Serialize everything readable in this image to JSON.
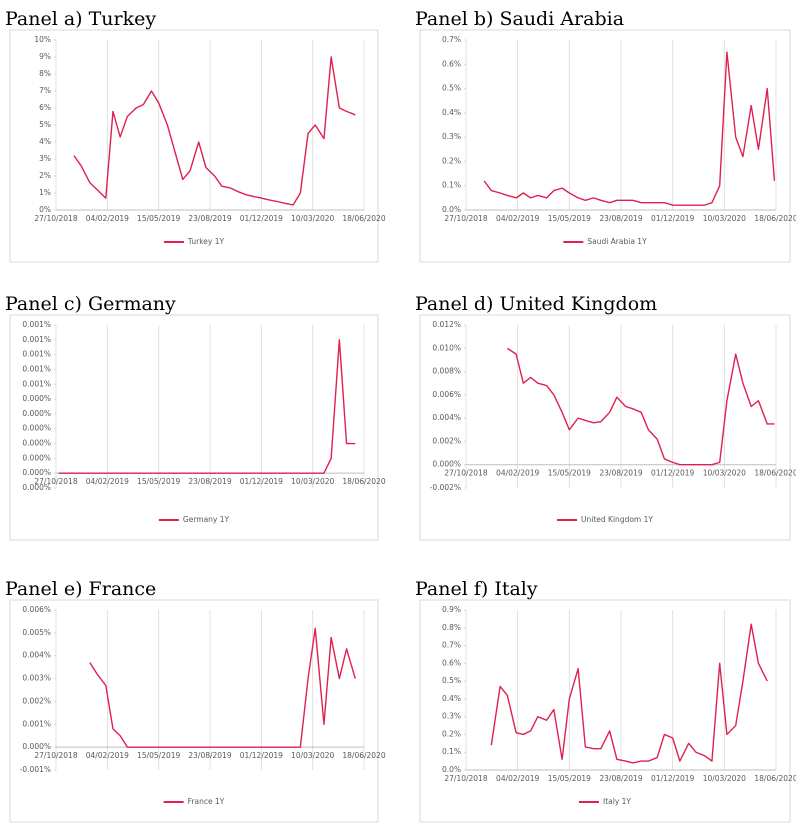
{
  "chart_data": [
    {
      "type": "line",
      "title": "Panel a) Turkey",
      "grid": "vertical",
      "legend": "bottom",
      "xlim": [
        "2018-10-27",
        "2020-06-18"
      ],
      "xticks": [
        {
          "value": "2018-10-27",
          "label": "27/10/2018"
        },
        {
          "value": "2019-02-04",
          "label": "04/02/2019"
        },
        {
          "value": "2019-05-15",
          "label": "15/05/2019"
        },
        {
          "value": "2019-08-23",
          "label": "23/08/2019"
        },
        {
          "value": "2019-12-01",
          "label": "01/12/2019"
        },
        {
          "value": "2020-03-10",
          "label": "10/03/2020"
        },
        {
          "value": "2020-06-18",
          "label": "18/06/2020"
        }
      ],
      "ylim": [
        0,
        10
      ],
      "yticks": [
        {
          "value": 0,
          "label": "0%"
        },
        {
          "value": 1,
          "label": "1%"
        },
        {
          "value": 2,
          "label": "2%"
        },
        {
          "value": 3,
          "label": "3%"
        },
        {
          "value": 4,
          "label": "4%"
        },
        {
          "value": 5,
          "label": "5%"
        },
        {
          "value": 6,
          "label": "6%"
        },
        {
          "value": 7,
          "label": "7%"
        },
        {
          "value": 8,
          "label": "8%"
        },
        {
          "value": 9,
          "label": "9%"
        },
        {
          "value": 10,
          "label": "10%"
        }
      ],
      "x": [
        "2018-12-01",
        "2018-12-15",
        "2019-01-01",
        "2019-01-15",
        "2019-02-01",
        "2019-02-15",
        "2019-03-01",
        "2019-03-15",
        "2019-04-01",
        "2019-04-15",
        "2019-05-01",
        "2019-05-15",
        "2019-06-01",
        "2019-06-15",
        "2019-07-01",
        "2019-07-15",
        "2019-08-01",
        "2019-08-15",
        "2019-09-01",
        "2019-09-15",
        "2019-10-01",
        "2019-10-15",
        "2019-11-01",
        "2019-11-15",
        "2019-12-01",
        "2019-12-15",
        "2020-01-01",
        "2020-01-15",
        "2020-02-01",
        "2020-02-15",
        "2020-03-01",
        "2020-03-15",
        "2020-04-01",
        "2020-04-15",
        "2020-05-01",
        "2020-05-15",
        "2020-06-01"
      ],
      "series": [
        {
          "name": "Turkey 1Y",
          "color": "#e0204e",
          "values": [
            3.2,
            2.6,
            1.6,
            1.2,
            0.7,
            5.8,
            4.3,
            5.5,
            6.0,
            6.2,
            7.0,
            6.3,
            5.0,
            3.5,
            1.8,
            2.3,
            4.0,
            2.5,
            2.0,
            1.4,
            1.3,
            1.1,
            0.9,
            0.8,
            0.7,
            0.6,
            0.5,
            0.4,
            0.3,
            1.0,
            4.5,
            5.0,
            4.2,
            9.0,
            6.0,
            5.8,
            5.6
          ]
        }
      ]
    },
    {
      "type": "line",
      "title": "Panel b) Saudi Arabia",
      "grid": "vertical",
      "legend": "bottom",
      "xlim": [
        "2018-10-27",
        "2020-06-18"
      ],
      "xticks": [
        {
          "value": "2018-10-27",
          "label": "27/10/2018"
        },
        {
          "value": "2019-02-04",
          "label": "04/02/2019"
        },
        {
          "value": "2019-05-15",
          "label": "15/05/2019"
        },
        {
          "value": "2019-08-23",
          "label": "23/08/2019"
        },
        {
          "value": "2019-12-01",
          "label": "01/12/2019"
        },
        {
          "value": "2020-03-10",
          "label": "10/03/2020"
        },
        {
          "value": "2020-06-18",
          "label": "18/06/2020"
        }
      ],
      "ylim": [
        0,
        0.7
      ],
      "yticks": [
        {
          "value": 0,
          "label": "0.0%"
        },
        {
          "value": 0.1,
          "label": "0.1%"
        },
        {
          "value": 0.2,
          "label": "0.2%"
        },
        {
          "value": 0.3,
          "label": "0.3%"
        },
        {
          "value": 0.4,
          "label": "0.4%"
        },
        {
          "value": 0.5,
          "label": "0.5%"
        },
        {
          "value": 0.6,
          "label": "0.6%"
        },
        {
          "value": 0.7,
          "label": "0.7%"
        }
      ],
      "x": [
        "2018-12-01",
        "2018-12-15",
        "2019-01-01",
        "2019-01-15",
        "2019-02-01",
        "2019-02-15",
        "2019-03-01",
        "2019-03-15",
        "2019-04-01",
        "2019-04-15",
        "2019-05-01",
        "2019-05-15",
        "2019-06-01",
        "2019-06-15",
        "2019-07-01",
        "2019-07-15",
        "2019-08-01",
        "2019-08-15",
        "2019-09-01",
        "2019-09-15",
        "2019-10-01",
        "2019-10-15",
        "2019-11-01",
        "2019-11-15",
        "2019-12-01",
        "2019-12-15",
        "2020-01-01",
        "2020-01-15",
        "2020-02-01",
        "2020-02-15",
        "2020-03-01",
        "2020-03-15",
        "2020-04-01",
        "2020-04-15",
        "2020-05-01",
        "2020-05-15",
        "2020-06-01",
        "2020-06-15"
      ],
      "series": [
        {
          "name": "Saudi Arabia 1Y",
          "color": "#e0204e",
          "values": [
            0.12,
            0.08,
            0.07,
            0.06,
            0.05,
            0.07,
            0.05,
            0.06,
            0.05,
            0.08,
            0.09,
            0.07,
            0.05,
            0.04,
            0.05,
            0.04,
            0.03,
            0.04,
            0.04,
            0.04,
            0.03,
            0.03,
            0.03,
            0.03,
            0.02,
            0.02,
            0.02,
            0.02,
            0.02,
            0.03,
            0.1,
            0.65,
            0.3,
            0.22,
            0.43,
            0.25,
            0.5,
            0.12
          ]
        }
      ]
    },
    {
      "type": "line",
      "title": "Panel c) Germany",
      "grid": "vertical",
      "legend": "bottom",
      "xlim": [
        "2018-10-27",
        "2020-06-18"
      ],
      "xticks": [
        {
          "value": "2018-10-27",
          "label": "27/10/2018"
        },
        {
          "value": "2019-02-04",
          "label": "04/02/2019"
        },
        {
          "value": "2019-05-15",
          "label": "15/05/2019"
        },
        {
          "value": "2019-08-23",
          "label": "23/08/2019"
        },
        {
          "value": "2019-12-01",
          "label": "01/12/2019"
        },
        {
          "value": "2020-03-10",
          "label": "10/03/2020"
        },
        {
          "value": "2020-06-18",
          "label": "18/06/2020"
        }
      ],
      "ylim": [
        -0.0001,
        0.001
      ],
      "yticks": [
        {
          "value": -0.0001,
          "label": "0.000%"
        },
        {
          "value": 0,
          "label": "0.000%"
        },
        {
          "value": 0.0001,
          "label": "0.000%"
        },
        {
          "value": 0.0002,
          "label": "0.000%"
        },
        {
          "value": 0.0003,
          "label": "0.000%"
        },
        {
          "value": 0.0004,
          "label": "0.000%"
        },
        {
          "value": 0.0005,
          "label": "0.000%"
        },
        {
          "value": 0.0006,
          "label": "0.001%"
        },
        {
          "value": 0.0007,
          "label": "0.001%"
        },
        {
          "value": 0.0008,
          "label": "0.001%"
        },
        {
          "value": 0.0009,
          "label": "0.001%"
        },
        {
          "value": 0.001,
          "label": "0.001%"
        }
      ],
      "x": [
        "2018-11-01",
        "2019-06-01",
        "2020-01-01",
        "2020-04-01",
        "2020-04-15",
        "2020-05-01",
        "2020-05-15",
        "2020-06-01"
      ],
      "series": [
        {
          "name": "Germany 1Y",
          "color": "#e0204e",
          "values": [
            0,
            0,
            0,
            0,
            0.0001,
            0.0009,
            0.0002,
            0.0002
          ]
        }
      ]
    },
    {
      "type": "line",
      "title": "Panel d) United Kingdom",
      "grid": "vertical",
      "legend": "bottom",
      "xlim": [
        "2018-10-27",
        "2020-06-18"
      ],
      "xticks": [
        {
          "value": "2018-10-27",
          "label": "27/10/2018"
        },
        {
          "value": "2019-02-04",
          "label": "04/02/2019"
        },
        {
          "value": "2019-05-15",
          "label": "15/05/2019"
        },
        {
          "value": "2019-08-23",
          "label": "23/08/2019"
        },
        {
          "value": "2019-12-01",
          "label": "01/12/2019"
        },
        {
          "value": "2020-03-10",
          "label": "10/03/2020"
        },
        {
          "value": "2020-06-18",
          "label": "18/06/2020"
        }
      ],
      "ylim": [
        -0.002,
        0.012
      ],
      "yticks": [
        {
          "value": -0.002,
          "label": "-0.002%"
        },
        {
          "value": 0,
          "label": "0.000%"
        },
        {
          "value": 0.002,
          "label": "0.002%"
        },
        {
          "value": 0.004,
          "label": "0.004%"
        },
        {
          "value": 0.006,
          "label": "0.006%"
        },
        {
          "value": 0.008,
          "label": "0.008%"
        },
        {
          "value": 0.01,
          "label": "0.010%"
        },
        {
          "value": 0.012,
          "label": "0.012%"
        }
      ],
      "x": [
        "2019-01-15",
        "2019-02-01",
        "2019-02-15",
        "2019-03-01",
        "2019-03-15",
        "2019-04-01",
        "2019-04-15",
        "2019-05-01",
        "2019-05-15",
        "2019-06-01",
        "2019-06-15",
        "2019-07-01",
        "2019-07-15",
        "2019-08-01",
        "2019-08-15",
        "2019-09-01",
        "2019-09-15",
        "2019-10-01",
        "2019-10-15",
        "2019-11-01",
        "2019-11-15",
        "2019-12-01",
        "2019-12-15",
        "2020-01-01",
        "2020-01-15",
        "2020-02-01",
        "2020-02-15",
        "2020-03-01",
        "2020-03-15",
        "2020-04-01",
        "2020-04-15",
        "2020-05-01",
        "2020-05-15",
        "2020-06-01",
        "2020-06-15"
      ],
      "series": [
        {
          "name": "United Kingdom 1Y",
          "color": "#e0204e",
          "values": [
            0.01,
            0.0095,
            0.007,
            0.0075,
            0.007,
            0.0068,
            0.006,
            0.0045,
            0.003,
            0.004,
            0.0038,
            0.0036,
            0.0037,
            0.0045,
            0.0058,
            0.005,
            0.0048,
            0.0045,
            0.003,
            0.0022,
            0.0005,
            0.0002,
            0,
            0,
            0,
            0,
            0,
            0.0002,
            0.0055,
            0.0095,
            0.007,
            0.005,
            0.0055,
            0.0035,
            0.0035
          ]
        }
      ]
    },
    {
      "type": "line",
      "title": "Panel e) France",
      "grid": "vertical",
      "legend": "bottom",
      "xlim": [
        "2018-10-27",
        "2020-06-18"
      ],
      "xticks": [
        {
          "value": "2018-10-27",
          "label": "27/10/2018"
        },
        {
          "value": "2019-02-04",
          "label": "04/02/2019"
        },
        {
          "value": "2019-05-15",
          "label": "15/05/2019"
        },
        {
          "value": "2019-08-23",
          "label": "23/08/2019"
        },
        {
          "value": "2019-12-01",
          "label": "01/12/2019"
        },
        {
          "value": "2020-03-10",
          "label": "10/03/2020"
        },
        {
          "value": "2020-06-18",
          "label": "18/06/2020"
        }
      ],
      "ylim": [
        -0.001,
        0.006
      ],
      "yticks": [
        {
          "value": -0.001,
          "label": "-0.001%"
        },
        {
          "value": 0,
          "label": "0.000%"
        },
        {
          "value": 0.001,
          "label": "0.001%"
        },
        {
          "value": 0.002,
          "label": "0.002%"
        },
        {
          "value": 0.003,
          "label": "0.003%"
        },
        {
          "value": 0.004,
          "label": "0.004%"
        },
        {
          "value": 0.005,
          "label": "0.005%"
        },
        {
          "value": 0.006,
          "label": "0.006%"
        }
      ],
      "x": [
        "2019-01-01",
        "2019-01-15",
        "2019-02-01",
        "2019-02-15",
        "2019-03-01",
        "2019-03-15",
        "2019-06-01",
        "2019-12-01",
        "2020-02-15",
        "2020-03-01",
        "2020-03-15",
        "2020-04-01",
        "2020-04-15",
        "2020-05-01",
        "2020-05-15",
        "2020-06-01"
      ],
      "series": [
        {
          "name": "France 1Y",
          "color": "#e0204e",
          "values": [
            0.0037,
            0.0032,
            0.0027,
            0.0008,
            0.0005,
            0,
            0,
            0,
            0,
            0.003,
            0.0052,
            0.001,
            0.0048,
            0.003,
            0.0043,
            0.003
          ]
        }
      ]
    },
    {
      "type": "line",
      "title": "Panel f) Italy",
      "grid": "vertical",
      "legend": "bottom",
      "xlim": [
        "2018-10-27",
        "2020-06-18"
      ],
      "xticks": [
        {
          "value": "2018-10-27",
          "label": "27/10/2018"
        },
        {
          "value": "2019-02-04",
          "label": "04/02/2019"
        },
        {
          "value": "2019-05-15",
          "label": "15/05/2019"
        },
        {
          "value": "2019-08-23",
          "label": "23/08/2019"
        },
        {
          "value": "2019-12-01",
          "label": "01/12/2019"
        },
        {
          "value": "2020-03-10",
          "label": "10/03/2020"
        },
        {
          "value": "2020-06-18",
          "label": "18/06/2020"
        }
      ],
      "ylim": [
        0,
        0.9
      ],
      "yticks": [
        {
          "value": 0,
          "label": "0.0%"
        },
        {
          "value": 0.1,
          "label": "0.1%"
        },
        {
          "value": 0.2,
          "label": "0.2%"
        },
        {
          "value": 0.3,
          "label": "0.3%"
        },
        {
          "value": 0.4,
          "label": "0.4%"
        },
        {
          "value": 0.5,
          "label": "0.5%"
        },
        {
          "value": 0.6,
          "label": "0.6%"
        },
        {
          "value": 0.7,
          "label": "0.7%"
        },
        {
          "value": 0.8,
          "label": "0.8%"
        },
        {
          "value": 0.9,
          "label": "0.9%"
        }
      ],
      "x": [
        "2018-12-15",
        "2019-01-01",
        "2019-01-15",
        "2019-02-01",
        "2019-02-15",
        "2019-03-01",
        "2019-03-15",
        "2019-04-01",
        "2019-04-15",
        "2019-05-01",
        "2019-05-15",
        "2019-06-01",
        "2019-06-15",
        "2019-07-01",
        "2019-07-15",
        "2019-08-01",
        "2019-08-15",
        "2019-09-01",
        "2019-09-15",
        "2019-10-01",
        "2019-10-15",
        "2019-11-01",
        "2019-11-15",
        "2019-12-01",
        "2019-12-15",
        "2020-01-01",
        "2020-01-15",
        "2020-02-01",
        "2020-02-15",
        "2020-03-01",
        "2020-03-15",
        "2020-04-01",
        "2020-04-15",
        "2020-05-01",
        "2020-05-15",
        "2020-06-01"
      ],
      "series": [
        {
          "name": "Italy 1Y",
          "color": "#e0204e",
          "values": [
            0.14,
            0.47,
            0.42,
            0.21,
            0.2,
            0.22,
            0.3,
            0.28,
            0.34,
            0.06,
            0.4,
            0.57,
            0.13,
            0.12,
            0.12,
            0.22,
            0.06,
            0.05,
            0.04,
            0.05,
            0.05,
            0.07,
            0.2,
            0.18,
            0.05,
            0.15,
            0.1,
            0.08,
            0.05,
            0.6,
            0.2,
            0.25,
            0.5,
            0.82,
            0.6,
            0.5
          ]
        }
      ]
    }
  ]
}
